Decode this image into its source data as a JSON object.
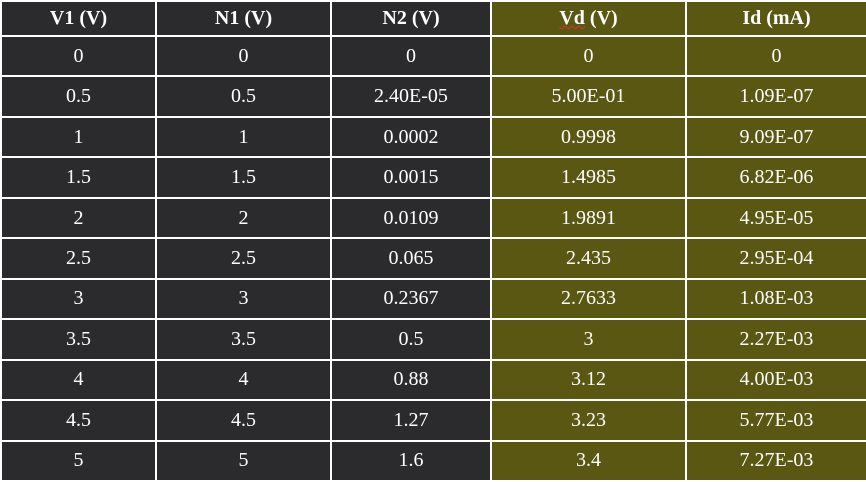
{
  "table": {
    "header": [
      "V1 (V)",
      "N1 (V)",
      "N2 (V)",
      "Vd (V)",
      "Id (mA)"
    ],
    "rows": [
      [
        "0",
        "0",
        "0",
        "0",
        "0"
      ],
      [
        "0.5",
        "0.5",
        "2.40E-05",
        "5.00E-01",
        "1.09E-07"
      ],
      [
        "1",
        "1",
        "0.0002",
        "0.9998",
        "9.09E-07"
      ],
      [
        "1.5",
        "1.5",
        "0.0015",
        "1.4985",
        "6.82E-06"
      ],
      [
        "2",
        "2",
        "0.0109",
        "1.9891",
        "4.95E-05"
      ],
      [
        "2.5",
        "2.5",
        "0.065",
        "2.435",
        "2.95E-04"
      ],
      [
        "3",
        "3",
        "0.2367",
        "2.7633",
        "1.08E-03"
      ],
      [
        "3.5",
        "3.5",
        "0.5",
        "3",
        "2.27E-03"
      ],
      [
        "4",
        "4",
        "0.88",
        "3.12",
        "4.00E-03"
      ],
      [
        "4.5",
        "4.5",
        "1.27",
        "3.23",
        "5.77E-03"
      ],
      [
        "5",
        "5",
        "1.6",
        "3.4",
        "7.27E-03"
      ]
    ]
  }
}
